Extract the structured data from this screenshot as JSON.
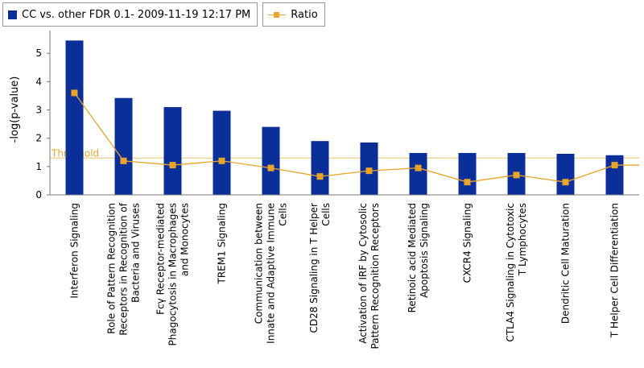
{
  "legend": {
    "bar_label": "CC vs. other FDR 0.1- 2009-11-19 12:17 PM",
    "line_label": "Ratio"
  },
  "colors": {
    "bar": "#0b2f99",
    "line": "#e8a52a",
    "threshold": "#e8a52a",
    "axis": "#777777"
  },
  "chart_data": {
    "type": "bar",
    "title": "",
    "xlabel": "",
    "ylabel": "-log(p-value)",
    "ylim": [
      0,
      5.8
    ],
    "yticks": [
      0,
      1,
      2,
      3,
      4,
      5
    ],
    "threshold": {
      "label": "Threshold",
      "value": 1.3
    },
    "categories": [
      [
        "Interferon Signaling"
      ],
      [
        "Role of Pattern Recognition",
        "Receptors in Recognition of",
        "Bacteria and Viruses"
      ],
      [
        "Fcγ Receptor-mediated",
        "Phagocytosis in Macrophages",
        "and Monocytes"
      ],
      [
        "TREM1 Signaling"
      ],
      [
        "Communication between",
        "Innate and Adaptive Immune",
        "Cells"
      ],
      [
        "CD28 Signaling in T Helper",
        "Cells"
      ],
      [
        "Activation of IRF by Cytosolic",
        "Pattern Recognition Receptors"
      ],
      [
        "Retinoic acid Mediated",
        "Apoptosis Signaling"
      ],
      [
        "CXCR4 Signaling"
      ],
      [
        "CTLA4 Signaling in Cytotoxic",
        "T Lymphocytes"
      ],
      [
        "Dendritic Cell Maturation"
      ],
      [
        "T Helper Cell Differentiation"
      ]
    ],
    "series": [
      {
        "name": "CC vs. other FDR 0.1- 2009-11-19 12:17 PM",
        "kind": "bar",
        "values": [
          5.45,
          3.42,
          3.1,
          2.97,
          2.4,
          1.9,
          1.85,
          1.48,
          1.48,
          1.48,
          1.45,
          1.4
        ]
      },
      {
        "name": "Ratio",
        "kind": "line",
        "values": [
          3.6,
          1.2,
          1.05,
          1.2,
          0.95,
          0.65,
          0.85,
          0.95,
          0.45,
          0.7,
          0.45,
          1.05
        ]
      }
    ]
  }
}
